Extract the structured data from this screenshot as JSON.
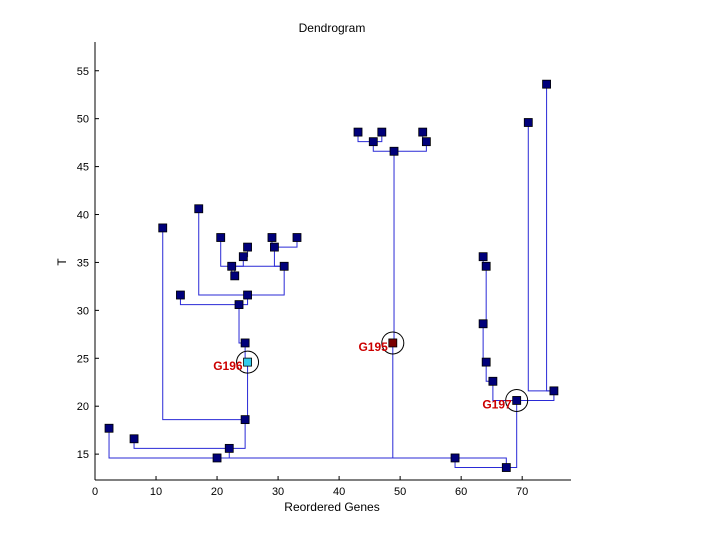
{
  "chart_data": {
    "type": "dendrogram",
    "title": "Dendrogram",
    "xlabel": "Reordered Genes",
    "ylabel": "T",
    "xlim": [
      0,
      78
    ],
    "ylim": [
      12.3,
      58
    ],
    "xticks": [
      0,
      10,
      20,
      30,
      40,
      50,
      60,
      70
    ],
    "yticks": [
      15,
      20,
      25,
      30,
      35,
      40,
      45,
      50,
      55
    ],
    "colors": {
      "line": "#2a2ad6",
      "node": "#00007a",
      "node_outline": "#000000",
      "highlight_g195": "#7a0000",
      "highlight_g196": "#33ccee",
      "annotation": "#cc0000"
    },
    "nodes": [
      {
        "id": "r",
        "x": 20.0,
        "y": 14.6
      },
      {
        "id": "a",
        "x": 2.3,
        "y": 17.7
      },
      {
        "id": "b",
        "x": 22.0,
        "y": 15.6
      },
      {
        "id": "c",
        "x": 6.4,
        "y": 16.6
      },
      {
        "id": "d",
        "x": 24.6,
        "y": 18.6
      },
      {
        "id": "e",
        "x": 11.1,
        "y": 38.6
      },
      {
        "id": "f",
        "x": 25.0,
        "y": 24.6,
        "label": "G196"
      },
      {
        "id": "g",
        "x": 24.6,
        "y": 26.6
      },
      {
        "id": "h",
        "x": 23.6,
        "y": 30.6
      },
      {
        "id": "i",
        "x": 25.0,
        "y": 31.6
      },
      {
        "id": "j",
        "x": 14.0,
        "y": 31.6
      },
      {
        "id": "k",
        "x": 17.0,
        "y": 40.6
      },
      {
        "id": "l",
        "x": 31.0,
        "y": 34.6
      },
      {
        "id": "m",
        "x": 22.9,
        "y": 33.6
      },
      {
        "id": "n",
        "x": 22.4,
        "y": 34.6
      },
      {
        "id": "o",
        "x": 20.6,
        "y": 37.6
      },
      {
        "id": "p",
        "x": 24.3,
        "y": 35.6
      },
      {
        "id": "q",
        "x": 25.0,
        "y": 36.6
      },
      {
        "id": "s",
        "x": 29.4,
        "y": 36.6
      },
      {
        "id": "t",
        "x": 29.0,
        "y": 37.6
      },
      {
        "id": "u",
        "x": 33.1,
        "y": 37.6
      },
      {
        "id": "v",
        "x": 48.8,
        "y": 26.6,
        "label": "G195"
      },
      {
        "id": "w",
        "x": 49.0,
        "y": 46.6
      },
      {
        "id": "x",
        "x": 45.6,
        "y": 47.6
      },
      {
        "id": "y",
        "x": 43.1,
        "y": 48.6
      },
      {
        "id": "z",
        "x": 47.0,
        "y": 48.6
      },
      {
        "id": "aa",
        "x": 54.3,
        "y": 47.6
      },
      {
        "id": "ab",
        "x": 53.7,
        "y": 48.6
      },
      {
        "id": "ac",
        "x": 67.4,
        "y": 13.6
      },
      {
        "id": "ad",
        "x": 59.0,
        "y": 14.6
      },
      {
        "id": "ae",
        "x": 69.1,
        "y": 20.6,
        "label": "G197"
      },
      {
        "id": "af",
        "x": 65.2,
        "y": 22.6
      },
      {
        "id": "ag",
        "x": 64.1,
        "y": 24.6
      },
      {
        "id": "ah",
        "x": 63.6,
        "y": 28.6
      },
      {
        "id": "ai",
        "x": 64.1,
        "y": 34.6
      },
      {
        "id": "aj",
        "x": 63.6,
        "y": 35.6
      },
      {
        "id": "ak",
        "x": 75.2,
        "y": 21.6
      },
      {
        "id": "al",
        "x": 71.0,
        "y": 49.6
      },
      {
        "id": "am",
        "x": 74.0,
        "y": 53.6
      }
    ],
    "edges": [
      [
        "r",
        "a"
      ],
      [
        "r",
        "b"
      ],
      [
        "r",
        "v"
      ],
      [
        "r",
        "ac"
      ],
      [
        "b",
        "c"
      ],
      [
        "b",
        "d"
      ],
      [
        "d",
        "e"
      ],
      [
        "d",
        "f"
      ],
      [
        "f",
        "g"
      ],
      [
        "g",
        "h"
      ],
      [
        "h",
        "i"
      ],
      [
        "h",
        "j"
      ],
      [
        "i",
        "k"
      ],
      [
        "i",
        "l"
      ],
      [
        "l",
        "m"
      ],
      [
        "l",
        "s"
      ],
      [
        "m",
        "n"
      ],
      [
        "n",
        "o"
      ],
      [
        "n",
        "p"
      ],
      [
        "p",
        "q"
      ],
      [
        "s",
        "t"
      ],
      [
        "s",
        "u"
      ],
      [
        "v",
        "w"
      ],
      [
        "w",
        "x"
      ],
      [
        "w",
        "aa"
      ],
      [
        "x",
        "y"
      ],
      [
        "x",
        "z"
      ],
      [
        "aa",
        "ab"
      ],
      [
        "ac",
        "ad"
      ],
      [
        "ac",
        "ae"
      ],
      [
        "ae",
        "af"
      ],
      [
        "ae",
        "ak"
      ],
      [
        "af",
        "ag"
      ],
      [
        "ag",
        "ah"
      ],
      [
        "ah",
        "ai"
      ],
      [
        "ai",
        "aj"
      ],
      [
        "ak",
        "al"
      ],
      [
        "ak",
        "am"
      ]
    ],
    "annotations": [
      {
        "label": "G196",
        "node": "f",
        "color": "#cc0000"
      },
      {
        "label": "G195",
        "node": "v",
        "color": "#cc0000"
      },
      {
        "label": "G197",
        "node": "ae",
        "color": "#cc0000"
      }
    ]
  }
}
